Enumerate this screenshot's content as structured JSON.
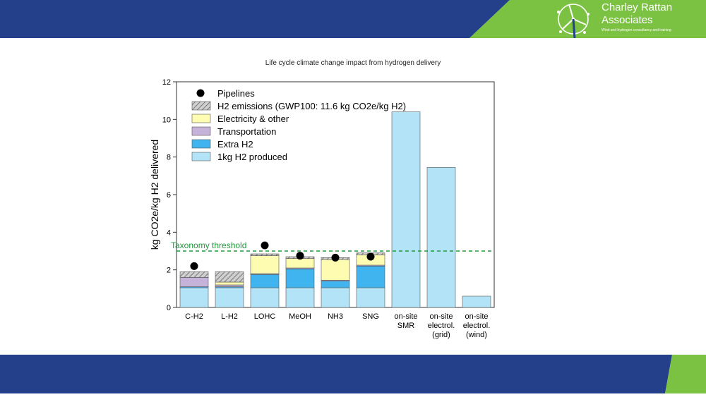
{
  "header": {
    "brand_name": "Charley Rattan",
    "brand_sub": "Associates",
    "brand_tagline": "Wind and hydrogen consultancy and training"
  },
  "colors": {
    "banner_blue": "#25408a",
    "banner_green": "#7cc242",
    "axis": "#333333",
    "threshold": "#1f9a3c"
  },
  "icons": {
    "logo": "wind-turbine-icon"
  },
  "chart_data": {
    "type": "bar",
    "title": "Life cycle climate change impact from hydrogen delivery",
    "ylabel": "kg CO2e/kg H2 delivered",
    "ylim": [
      0,
      12
    ],
    "yticks": [
      0,
      2,
      4,
      6,
      8,
      10,
      12
    ],
    "grid": false,
    "legend_position": "top-left",
    "stacked": true,
    "categories": [
      [
        "C-H2"
      ],
      [
        "L-H2"
      ],
      [
        "LOHC"
      ],
      [
        "MeOH"
      ],
      [
        "NH3"
      ],
      [
        "SNG"
      ],
      [
        "on-site",
        "SMR"
      ],
      [
        "on-site",
        "electrol.",
        "(grid)"
      ],
      [
        "on-site",
        "electrol.",
        "(wind)"
      ]
    ],
    "series": [
      {
        "name": "1kg H2 produced",
        "color": "#b3e3f7",
        "values": [
          1.05,
          1.05,
          1.05,
          1.05,
          1.05,
          1.05,
          10.4,
          7.45,
          0.6
        ]
      },
      {
        "name": "Extra H2",
        "color": "#3fb4ee",
        "values": [
          0.05,
          0.05,
          0.7,
          1.0,
          0.35,
          1.15,
          0,
          0,
          0
        ]
      },
      {
        "name": "Transportation",
        "color": "#c5b3da",
        "values": [
          0.5,
          0.1,
          0.05,
          0.05,
          0.05,
          0.05,
          0,
          0,
          0
        ]
      },
      {
        "name": "Electricity & other",
        "color": "#fefcb0",
        "values": [
          0,
          0.15,
          0.95,
          0.5,
          1.1,
          0.55,
          0,
          0,
          0
        ]
      },
      {
        "name": "H2 emissions (GWP100: 11.6 kg CO2e/kg H2)",
        "color": "#aaaaaa",
        "values": [
          0.3,
          0.55,
          0.1,
          0.1,
          0.1,
          0.1,
          0,
          0,
          0
        ]
      }
    ],
    "points": {
      "name": "Pipelines",
      "values": [
        2.2,
        null,
        3.3,
        2.75,
        2.65,
        2.7,
        null,
        null,
        null
      ]
    },
    "threshold": {
      "label": "Taxonomy threshold",
      "value": 3.0
    }
  }
}
